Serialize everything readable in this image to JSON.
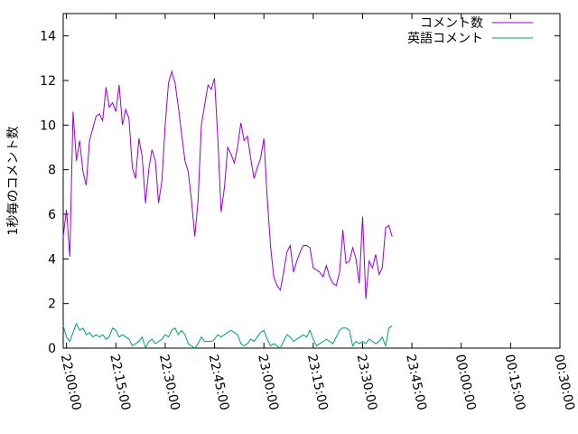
{
  "chart_data": {
    "type": "line",
    "title": "",
    "xlabel": "",
    "ylabel": "1秒毎のコメント数",
    "ylim": [
      0,
      15
    ],
    "yticks": [
      "0",
      "2",
      "4",
      "6",
      "8",
      "10",
      "12",
      "14"
    ],
    "xticks": [
      "22:00:00",
      "22:15:00",
      "22:30:00",
      "22:45:00",
      "23:00:00",
      "23:15:00",
      "23:30:00",
      "23:45:00",
      "00:00:00",
      "00:15:00",
      "00:30:00"
    ],
    "xlim": [
      "21:59:00",
      "00:30:00"
    ],
    "grid": false,
    "legend_position": "top-right",
    "series": [
      {
        "name": "コメント数",
        "color": "#9400d3",
        "points": [
          [
            "21:59:00",
            5.0
          ],
          [
            "22:00:00",
            6.2
          ],
          [
            "22:01:00",
            4.1
          ],
          [
            "22:02:00",
            10.6
          ],
          [
            "22:03:00",
            8.4
          ],
          [
            "22:04:00",
            9.3
          ],
          [
            "22:05:00",
            7.9
          ],
          [
            "22:06:00",
            7.3
          ],
          [
            "22:07:00",
            9.3
          ],
          [
            "22:09:00",
            10.4
          ],
          [
            "22:10:00",
            10.5
          ],
          [
            "22:11:00",
            10.2
          ],
          [
            "22:12:00",
            11.7
          ],
          [
            "22:13:00",
            10.8
          ],
          [
            "22:14:00",
            11.0
          ],
          [
            "22:15:00",
            10.6
          ],
          [
            "22:16:00",
            11.8
          ],
          [
            "22:17:00",
            10.0
          ],
          [
            "22:18:00",
            10.7
          ],
          [
            "22:19:00",
            10.3
          ],
          [
            "22:20:00",
            8.1
          ],
          [
            "22:21:00",
            7.6
          ],
          [
            "22:22:00",
            9.4
          ],
          [
            "22:23:00",
            8.6
          ],
          [
            "22:24:00",
            6.5
          ],
          [
            "22:25:00",
            8.0
          ],
          [
            "22:26:00",
            8.9
          ],
          [
            "22:27:00",
            8.4
          ],
          [
            "22:28:00",
            6.5
          ],
          [
            "22:29:00",
            7.5
          ],
          [
            "22:30:00",
            10.0
          ],
          [
            "22:31:00",
            11.9
          ],
          [
            "22:32:00",
            12.4
          ],
          [
            "22:33:00",
            11.9
          ],
          [
            "22:34:00",
            10.8
          ],
          [
            "22:35:00",
            9.6
          ],
          [
            "22:36:00",
            8.4
          ],
          [
            "22:37:00",
            7.9
          ],
          [
            "22:38:00",
            6.6
          ],
          [
            "22:39:00",
            5.0
          ],
          [
            "22:40:00",
            6.6
          ],
          [
            "22:41:00",
            10.0
          ],
          [
            "22:42:00",
            10.9
          ],
          [
            "22:43:00",
            11.8
          ],
          [
            "22:44:00",
            11.6
          ],
          [
            "22:45:00",
            12.1
          ],
          [
            "22:46:00",
            9.4
          ],
          [
            "22:47:00",
            6.1
          ],
          [
            "22:48:00",
            7.2
          ],
          [
            "22:49:00",
            9.0
          ],
          [
            "22:50:00",
            8.7
          ],
          [
            "22:51:00",
            8.3
          ],
          [
            "22:52:00",
            9.0
          ],
          [
            "22:53:00",
            10.1
          ],
          [
            "22:54:00",
            9.3
          ],
          [
            "22:55:00",
            9.5
          ],
          [
            "22:56:00",
            8.5
          ],
          [
            "22:57:00",
            7.6
          ],
          [
            "22:58:00",
            8.1
          ],
          [
            "22:59:00",
            8.5
          ],
          [
            "23:00:00",
            9.4
          ],
          [
            "23:01:00",
            6.8
          ],
          [
            "23:02:00",
            4.6
          ],
          [
            "23:03:00",
            3.2
          ],
          [
            "23:04:00",
            2.8
          ],
          [
            "23:05:00",
            2.6
          ],
          [
            "23:06:00",
            3.4
          ],
          [
            "23:07:00",
            4.3
          ],
          [
            "23:08:00",
            4.6
          ],
          [
            "23:09:00",
            3.4
          ],
          [
            "23:10:00",
            3.9
          ],
          [
            "23:11:00",
            4.3
          ],
          [
            "23:12:00",
            4.6
          ],
          [
            "23:13:00",
            4.6
          ],
          [
            "23:14:00",
            4.5
          ],
          [
            "23:15:00",
            3.6
          ],
          [
            "23:16:00",
            3.5
          ],
          [
            "23:17:00",
            3.4
          ],
          [
            "23:18:00",
            3.2
          ],
          [
            "23:19:00",
            3.7
          ],
          [
            "23:20:00",
            3.2
          ],
          [
            "23:21:00",
            2.9
          ],
          [
            "23:22:00",
            2.8
          ],
          [
            "23:23:00",
            3.4
          ],
          [
            "23:24:00",
            5.3
          ],
          [
            "23:25:00",
            3.8
          ],
          [
            "23:26:00",
            3.9
          ],
          [
            "23:27:00",
            4.5
          ],
          [
            "23:28:00",
            4.0
          ],
          [
            "23:29:00",
            2.9
          ],
          [
            "23:30:00",
            5.9
          ],
          [
            "23:31:00",
            2.2
          ],
          [
            "23:32:00",
            3.9
          ],
          [
            "23:33:00",
            3.6
          ],
          [
            "23:34:00",
            4.2
          ],
          [
            "23:35:00",
            3.3
          ],
          [
            "23:36:00",
            3.6
          ],
          [
            "23:37:00",
            5.4
          ],
          [
            "23:38:00",
            5.5
          ],
          [
            "23:39:00",
            5.0
          ]
        ]
      },
      {
        "name": "英語コメント",
        "color": "#009e73",
        "points": [
          [
            "21:59:00",
            1.0
          ],
          [
            "22:00:00",
            0.5
          ],
          [
            "22:01:00",
            0.3
          ],
          [
            "22:02:00",
            0.7
          ],
          [
            "22:03:00",
            1.1
          ],
          [
            "22:04:00",
            0.8
          ],
          [
            "22:05:00",
            0.9
          ],
          [
            "22:06:00",
            0.6
          ],
          [
            "22:07:00",
            0.7
          ],
          [
            "22:08:00",
            0.5
          ],
          [
            "22:09:00",
            0.6
          ],
          [
            "22:10:00",
            0.5
          ],
          [
            "22:11:00",
            0.6
          ],
          [
            "22:12:00",
            0.4
          ],
          [
            "22:13:00",
            0.5
          ],
          [
            "22:14:00",
            0.9
          ],
          [
            "22:15:00",
            0.8
          ],
          [
            "22:16:00",
            0.5
          ],
          [
            "22:17:00",
            0.6
          ],
          [
            "22:18:00",
            0.5
          ],
          [
            "22:19:00",
            0.4
          ],
          [
            "22:20:00",
            0.1
          ],
          [
            "22:21:00",
            0.2
          ],
          [
            "22:22:00",
            0.3
          ],
          [
            "22:23:00",
            0.5
          ],
          [
            "22:24:00",
            0.0
          ],
          [
            "22:25:00",
            0.3
          ],
          [
            "22:26:00",
            0.4
          ],
          [
            "22:27:00",
            0.2
          ],
          [
            "22:28:00",
            0.3
          ],
          [
            "22:29:00",
            0.4
          ],
          [
            "22:30:00",
            0.6
          ],
          [
            "22:31:00",
            0.5
          ],
          [
            "22:32:00",
            0.8
          ],
          [
            "22:33:00",
            0.9
          ],
          [
            "22:34:00",
            0.6
          ],
          [
            "22:35:00",
            0.8
          ],
          [
            "22:36:00",
            0.6
          ],
          [
            "22:37:00",
            0.2
          ],
          [
            "22:38:00",
            0.1
          ],
          [
            "22:39:00",
            0.0
          ],
          [
            "22:40:00",
            0.2
          ],
          [
            "22:41:00",
            0.5
          ],
          [
            "22:42:00",
            0.3
          ],
          [
            "22:43:00",
            0.3
          ],
          [
            "22:44:00",
            0.3
          ],
          [
            "22:45:00",
            0.4
          ],
          [
            "22:46:00",
            0.6
          ],
          [
            "22:47:00",
            0.5
          ],
          [
            "22:48:00",
            0.6
          ],
          [
            "22:49:00",
            0.7
          ],
          [
            "22:50:00",
            0.8
          ],
          [
            "22:51:00",
            0.7
          ],
          [
            "22:52:00",
            0.6
          ],
          [
            "22:53:00",
            0.2
          ],
          [
            "22:54:00",
            0.1
          ],
          [
            "22:55:00",
            0.2
          ],
          [
            "22:56:00",
            0.4
          ],
          [
            "22:57:00",
            0.3
          ],
          [
            "22:58:00",
            0.5
          ],
          [
            "22:59:00",
            0.7
          ],
          [
            "23:00:00",
            0.8
          ],
          [
            "23:01:00",
            0.4
          ],
          [
            "23:02:00",
            0.1
          ],
          [
            "23:03:00",
            0.2
          ],
          [
            "23:04:00",
            0.1
          ],
          [
            "23:05:00",
            0.0
          ],
          [
            "23:06:00",
            0.3
          ],
          [
            "23:07:00",
            0.6
          ],
          [
            "23:08:00",
            0.5
          ],
          [
            "23:09:00",
            0.3
          ],
          [
            "23:10:00",
            0.4
          ],
          [
            "23:11:00",
            0.5
          ],
          [
            "23:12:00",
            0.6
          ],
          [
            "23:13:00",
            0.5
          ],
          [
            "23:14:00",
            0.8
          ],
          [
            "23:15:00",
            0.4
          ],
          [
            "23:16:00",
            0.1
          ],
          [
            "23:17:00",
            0.2
          ],
          [
            "23:18:00",
            0.3
          ],
          [
            "23:19:00",
            0.4
          ],
          [
            "23:20:00",
            0.3
          ],
          [
            "23:21:00",
            0.2
          ],
          [
            "23:22:00",
            0.5
          ],
          [
            "23:23:00",
            0.8
          ],
          [
            "23:24:00",
            0.9
          ],
          [
            "23:25:00",
            0.9
          ],
          [
            "23:26:00",
            0.8
          ],
          [
            "23:27:00",
            0.1
          ],
          [
            "23:28:00",
            0.3
          ],
          [
            "23:29:00",
            0.2
          ],
          [
            "23:30:00",
            0.3
          ],
          [
            "23:31:00",
            0.2
          ],
          [
            "23:32:00",
            0.4
          ],
          [
            "23:33:00",
            0.3
          ],
          [
            "23:34:00",
            0.2
          ],
          [
            "23:35:00",
            0.3
          ],
          [
            "23:36:00",
            0.5
          ],
          [
            "23:37:00",
            0.1
          ],
          [
            "23:38:00",
            0.9
          ],
          [
            "23:39:00",
            1.0
          ]
        ]
      }
    ]
  }
}
